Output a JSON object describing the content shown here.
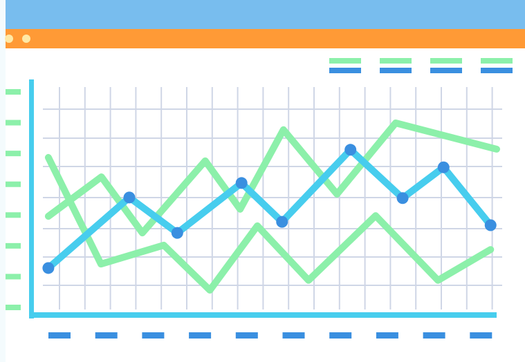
{
  "chart_data": {
    "type": "line",
    "xlim": [
      0,
      100
    ],
    "ylim": [
      0,
      7
    ],
    "yticks": [
      0,
      1,
      2,
      3,
      4,
      5,
      6,
      7
    ],
    "grid": true,
    "markers": true,
    "series": [
      {
        "color": "#8cf0aa",
        "x": [
          3.7,
          15.0,
          28.5,
          38.4,
          48.6,
          59.6,
          74.0,
          87.4,
          98.7
        ],
        "values": [
          4.87,
          1.41,
          2.02,
          0.56,
          2.65,
          0.88,
          2.98,
          0.88,
          1.88
        ]
      },
      {
        "color": "#8cf0aa",
        "x": [
          3.7,
          15.1,
          23.9,
          37.4,
          44.9,
          54.2,
          65.7,
          78.3,
          100
        ],
        "values": [
          2.96,
          4.24,
          2.42,
          4.76,
          3.19,
          5.77,
          3.68,
          5.99,
          5.14
        ]
      },
      {
        "color": "#47cdee",
        "marker_color": "#3a8fe0",
        "x": [
          3.7,
          21.1,
          31.4,
          45.2,
          53.9,
          68.6,
          79.8,
          88.6,
          98.7
        ],
        "values": [
          1.28,
          3.57,
          2.42,
          4.04,
          2.78,
          5.12,
          3.55,
          4.55,
          2.67
        ]
      }
    ]
  }
}
